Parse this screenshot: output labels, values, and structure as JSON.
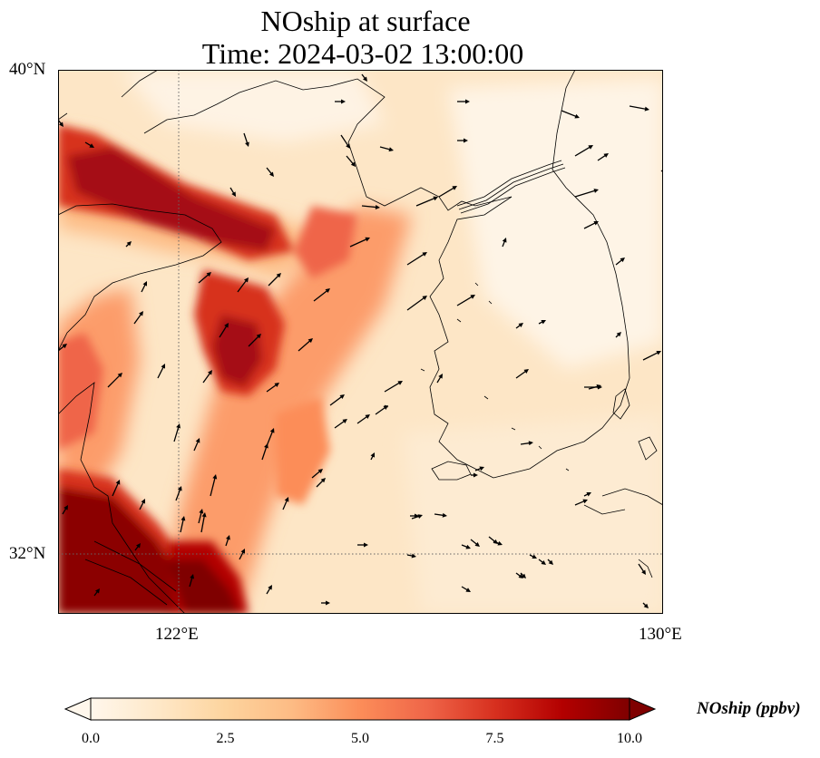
{
  "title": {
    "line1": "NOship at surface",
    "line2": "Time: 2024-03-02 13:00:00"
  },
  "map": {
    "lon_range": [
      120,
      130
    ],
    "lat_range": [
      31,
      40
    ],
    "lat_ticks": [
      {
        "value": 40,
        "label": "40°N"
      },
      {
        "value": 32,
        "label": "32°N"
      }
    ],
    "lon_ticks": [
      {
        "value": 122,
        "label": "122°E"
      },
      {
        "value": 130,
        "label": "130°E"
      }
    ],
    "gridlines": "dotted",
    "field": "NOship",
    "units": "ppbv",
    "vectors": "wind arrows"
  },
  "colorbar": {
    "label": "NOship (ppbv)",
    "min": 0.0,
    "max": 10.0,
    "extend": "both",
    "colormap": "OrRd",
    "ticks": [
      {
        "value": 0.0,
        "label": "0.0"
      },
      {
        "value": 2.5,
        "label": "2.5"
      },
      {
        "value": 5.0,
        "label": "5.0"
      },
      {
        "value": 7.5,
        "label": "7.5"
      },
      {
        "value": 10.0,
        "label": "10.0"
      }
    ],
    "colors": [
      "#fff7ec",
      "#fee8c8",
      "#fdd49e",
      "#fdbb84",
      "#fc8d59",
      "#ef6548",
      "#d7301f",
      "#b30000",
      "#7f0000"
    ]
  }
}
